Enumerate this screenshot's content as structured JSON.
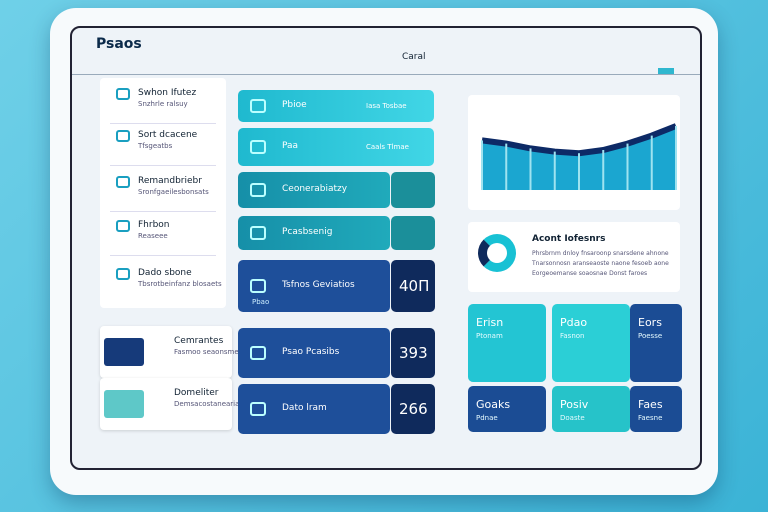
{
  "header": {
    "title": "Psaos",
    "center": "Caral"
  },
  "sidebar": [
    {
      "title": "Swhon Ifutez",
      "sub": "Snzhrle ralsuy"
    },
    {
      "title": "Sort dcacene",
      "sub": "Tfsgeatbs"
    },
    {
      "title": "Remandbriebr",
      "sub": "Sronfgaeilesbonsats"
    },
    {
      "title": "Fhrbon",
      "sub": "Reaseee"
    },
    {
      "title": "Dado sbone",
      "sub": "Tbsrotbeinfanz blosaets"
    }
  ],
  "sidebar_cards": [
    {
      "title": "Cemrantes",
      "sub": "Fasmoo seaonsmear"
    },
    {
      "title": "Domeliter",
      "sub": "Demsacostaneariaoad"
    }
  ],
  "tiles": [
    {
      "label": "Pbioe",
      "value": "Iasa Tosbae"
    },
    {
      "label": "Paa",
      "value": "Caals Tlmae"
    },
    {
      "label": "Ceonerabiatzy"
    },
    {
      "label": "Pcasbsenig"
    },
    {
      "label": "Tsfnos Geviatios",
      "sub": "Pbao",
      "value": "40П"
    },
    {
      "label": "Psao Pcasibs",
      "value": "393"
    },
    {
      "label": "Dato lram",
      "value": "266"
    }
  ],
  "area_chart": {
    "values": [
      62,
      58,
      52,
      48,
      46,
      50,
      58,
      68,
      80
    ]
  },
  "info": {
    "title": "Acont Iofesnrs",
    "lines": [
      "Phrsbrnm dnloy fnsaroonp snarsdene ahnone",
      "Tnarsonnosn aranseaoste naone fesoeb aone",
      "Eorgeoemanse soaosnae Donst faroes"
    ]
  },
  "cards": [
    {
      "title": "Erisn",
      "sub": "Ptonam"
    },
    {
      "title": "Pdao",
      "sub": "Fasnon"
    },
    {
      "title": "Eors",
      "sub": "Poesse"
    },
    {
      "title": "Goaks",
      "sub": "Pdnae"
    },
    {
      "title": "Posiv",
      "sub": "Doaste"
    },
    {
      "title": "Faes",
      "sub": "Faesne"
    }
  ]
}
